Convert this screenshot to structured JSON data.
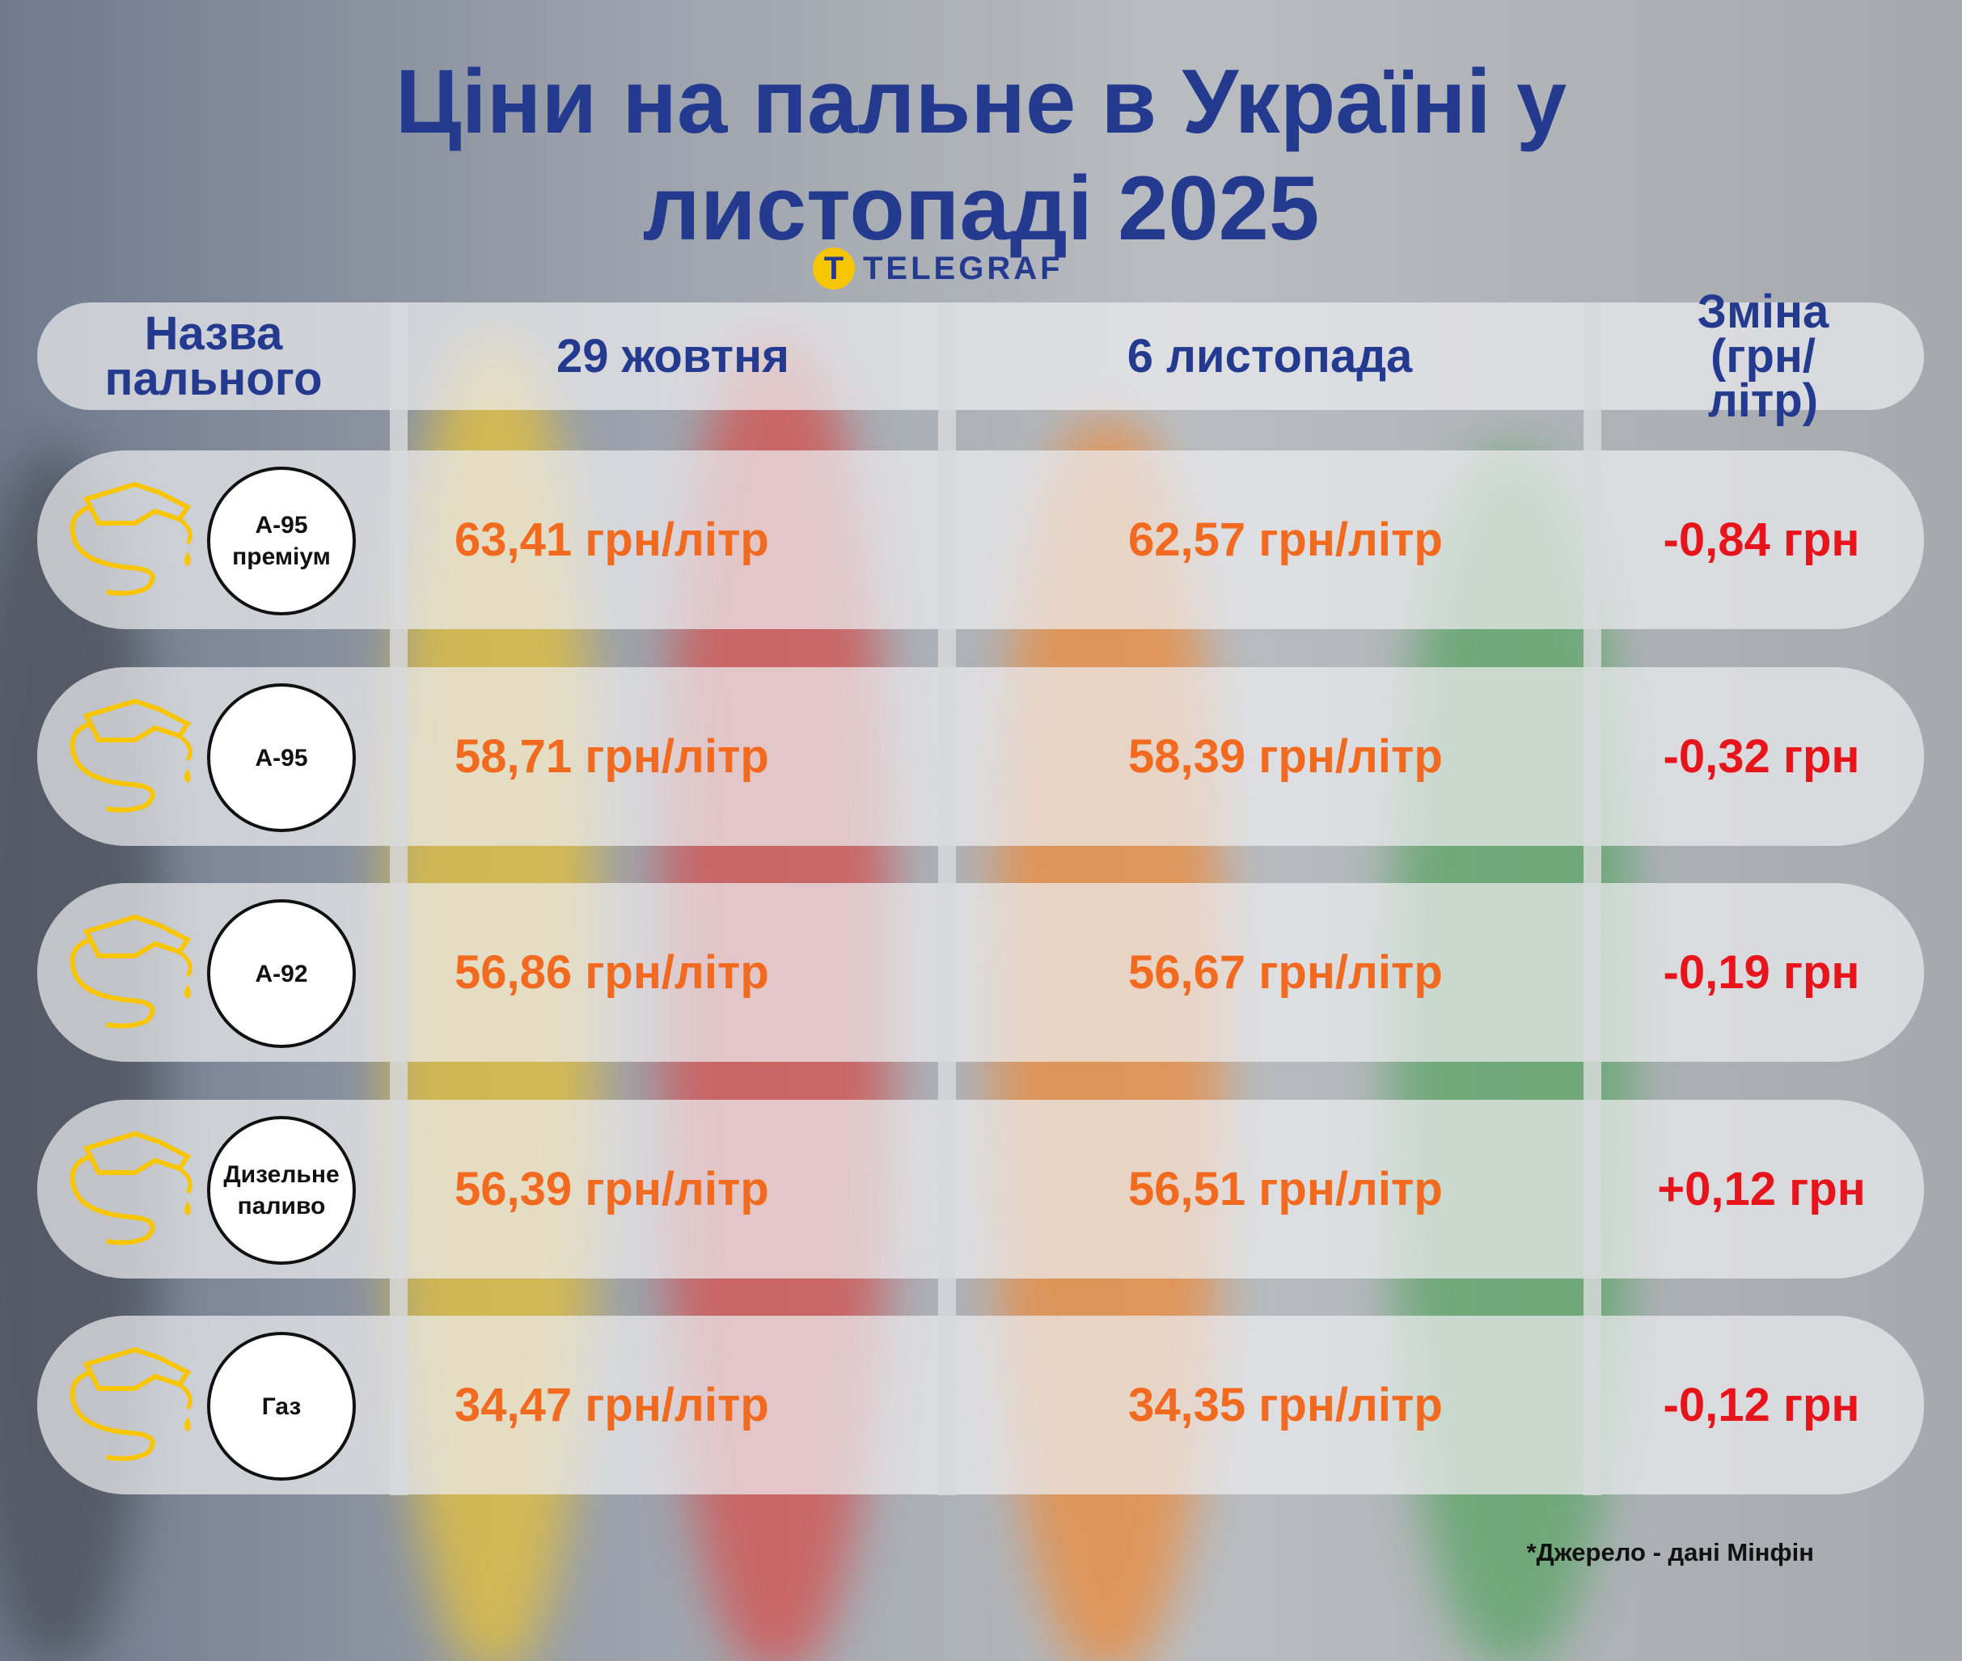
{
  "header": {
    "title_lines": [
      "Ціни на пальне в Україні у",
      "листопаді 2025"
    ],
    "logo": "TELEGRAF"
  },
  "table": {
    "columns": [
      "Назва пального",
      "29 жовтня",
      "6 листопада",
      "Зміна (грн/літр)"
    ],
    "rows": [
      [
        "А-95 преміум",
        "63,41 грн/літр",
        "62,57 грн/літр",
        "-0,84 грн"
      ],
      [
        "А-95",
        "58,71 грн/літр",
        "58,39 грн/літр",
        "-0,32 грн"
      ],
      [
        "А-92",
        "56,86 грн/літр",
        "56,67 грн/літр",
        "-0,19 грн"
      ],
      [
        "Дизельне паливо",
        "56,39 грн/літр",
        "56,51 грн/літр",
        "+0,12 грн"
      ],
      [
        "Газ",
        "34,47 грн/літр",
        "34,35 грн/літр",
        "-0,12 грн"
      ]
    ]
  },
  "footer": {
    "source": "*Джерело - дані Мінфін"
  }
}
